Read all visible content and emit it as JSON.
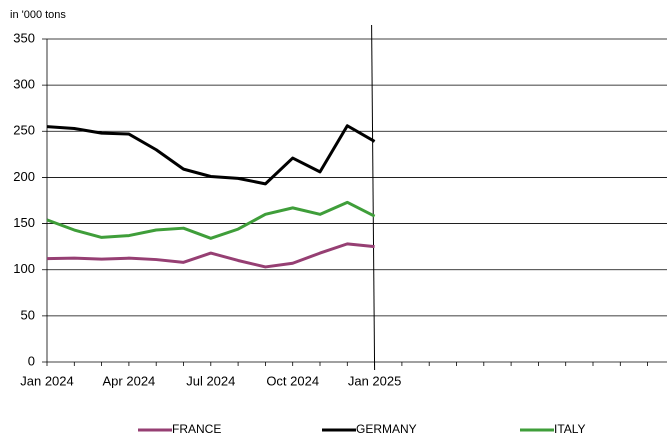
{
  "chart_data": {
    "type": "line",
    "y_label": "in '000 tons",
    "categories": [
      "Jan 2024",
      null,
      null,
      "Apr 2024",
      null,
      null,
      "Jul 2024",
      null,
      null,
      "Oct 2024",
      null,
      null,
      "Jan 2025",
      null,
      null,
      null,
      null,
      null,
      null,
      null,
      null,
      null,
      null
    ],
    "series": [
      {
        "name": "FRANCE",
        "color": "#963f73",
        "values": [
          112,
          112.5,
          111.5,
          112.5,
          111,
          108,
          118,
          110,
          103,
          107,
          118,
          128,
          125,
          null,
          null,
          null,
          null,
          null,
          null,
          null,
          null,
          null,
          null
        ]
      },
      {
        "name": "GERMANY",
        "color": "#000000",
        "values": [
          255,
          253,
          248,
          247,
          230,
          209,
          201,
          199,
          193,
          221,
          206,
          256,
          239,
          null,
          null,
          null,
          null,
          null,
          null,
          null,
          null,
          null,
          null
        ]
      },
      {
        "name": "ITALY",
        "color": "#3f9e3a",
        "values": [
          154,
          143,
          135,
          137,
          143,
          145,
          134,
          144,
          160,
          167,
          160,
          173,
          158,
          null,
          null,
          null,
          null,
          null,
          null,
          null,
          null,
          null,
          null
        ]
      }
    ],
    "ylim": [
      0,
      350
    ],
    "yticks": [
      0,
      50,
      100,
      150,
      200,
      250,
      300,
      350
    ],
    "grid": true,
    "legend": "bottom"
  }
}
